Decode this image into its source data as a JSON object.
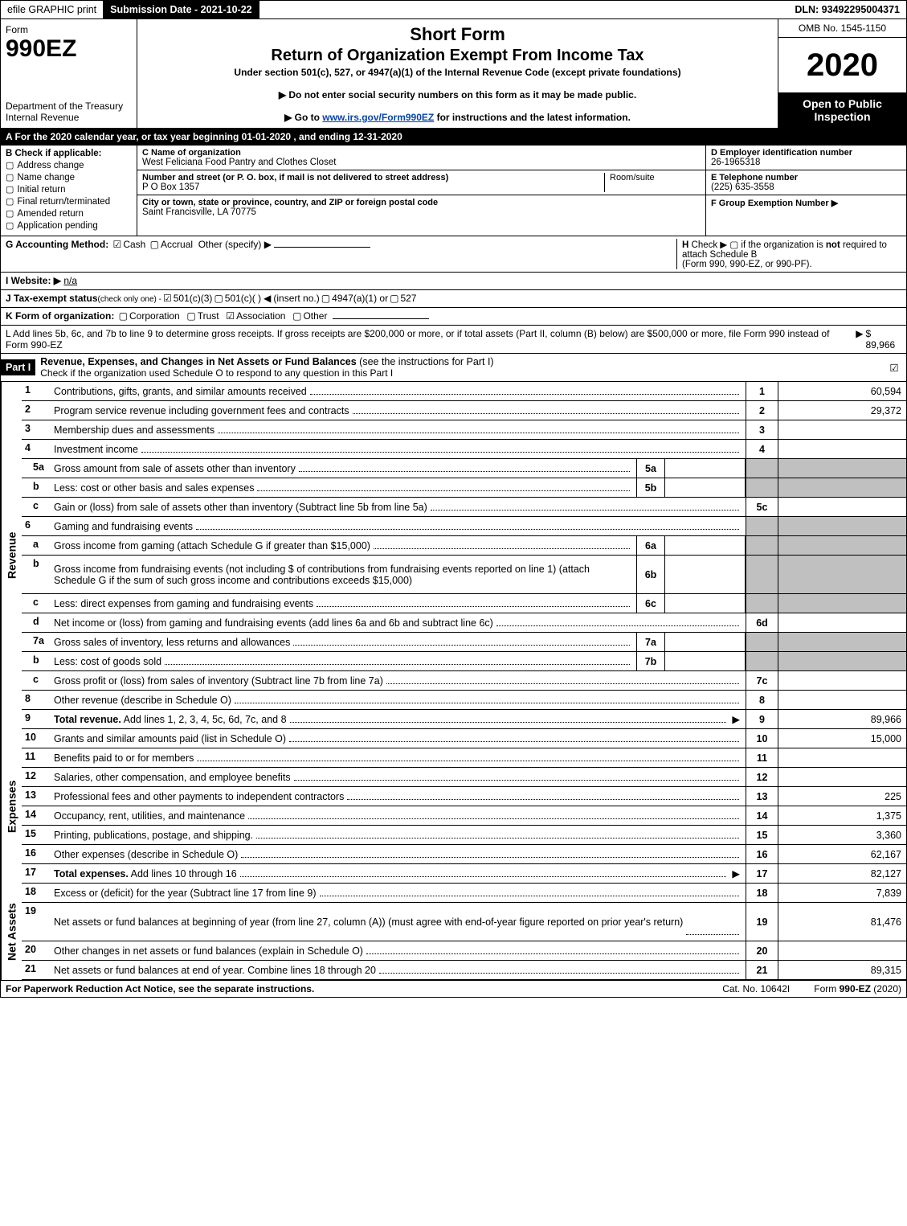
{
  "top_bar": {
    "efile": "efile GRAPHIC print",
    "submission_label": "Submission Date - 2021-10-22",
    "dln": "DLN: 93492295004371"
  },
  "header": {
    "form_word": "Form",
    "form_number": "990EZ",
    "dept1": "Department of the Treasury",
    "dept2": "Internal Revenue",
    "title1": "Short Form",
    "title2": "Return of Organization Exempt From Income Tax",
    "subtitle": "Under section 501(c), 527, or 4947(a)(1) of the Internal Revenue Code (except private foundations)",
    "note1": "▶ Do not enter social security numbers on this form as it may be made public.",
    "note2_pre": "▶ Go to ",
    "note2_link": "www.irs.gov/Form990EZ",
    "note2_post": " for instructions and the latest information.",
    "omb": "OMB No. 1545-1150",
    "year": "2020",
    "inspect": "Open to Public Inspection"
  },
  "row_a": "A For the 2020 calendar year, or tax year beginning 01-01-2020 , and ending 12-31-2020",
  "section_b": {
    "header": "B  Check if applicable:",
    "items": [
      "Address change",
      "Name change",
      "Initial return",
      "Final return/terminated",
      "Amended return",
      "Application pending"
    ]
  },
  "section_c": {
    "name_lbl": "C Name of organization",
    "name_val": "West Feliciana Food Pantry and Clothes Closet",
    "street_lbl": "Number and street (or P. O. box, if mail is not delivered to street address)",
    "street_val": "P O Box 1357",
    "room_lbl": "Room/suite",
    "city_lbl": "City or town, state or province, country, and ZIP or foreign postal code",
    "city_val": "Saint Francisville, LA  70775"
  },
  "section_d": {
    "ein_lbl": "D Employer identification number",
    "ein_val": "26-1965318",
    "phone_lbl": "E Telephone number",
    "phone_val": "(225) 635-3558",
    "group_lbl": "F Group Exemption Number  ▶"
  },
  "line_g": {
    "label": "G Accounting Method:",
    "cash": "Cash",
    "accrual": "Accrual",
    "other": "Other (specify) ▶"
  },
  "line_h": {
    "label": "H",
    "text1": "Check ▶  ▢  if the organization is ",
    "text_not": "not",
    "text2": " required to attach Schedule B",
    "text3": "(Form 990, 990-EZ, or 990-PF)."
  },
  "line_i": {
    "label": "I Website: ▶",
    "val": "n/a"
  },
  "line_j": {
    "pre": "J Tax-exempt status ",
    "small": "(check only one) - ",
    "opt1": "501(c)(3)",
    "opt2": "501(c)(  )",
    "insert": "(insert no.)",
    "opt3": "4947(a)(1) or",
    "opt4": "527"
  },
  "line_k": {
    "pre": "K Form of organization:",
    "opts": [
      "Corporation",
      "Trust",
      "Association",
      "Other"
    ]
  },
  "line_l": {
    "text": "L Add lines 5b, 6c, and 7b to line 9 to determine gross receipts. If gross receipts are $200,000 or more, or if total assets (Part II, column (B) below) are $500,000 or more, file Form 990 instead of Form 990-EZ",
    "amount": "$ 89,966"
  },
  "part1": {
    "label": "Part I",
    "title": "Revenue, Expenses, and Changes in Net Assets or Fund Balances",
    "title_suffix": " (see the instructions for Part I)",
    "check_line": "Check if the organization used Schedule O to respond to any question in this Part I"
  },
  "side_labels": {
    "revenue": "Revenue",
    "expenses": "Expenses",
    "net": "Net Assets"
  },
  "revenue_rows": [
    {
      "n": "1",
      "d": "Contributions, gifts, grants, and similar amounts received",
      "cn": "1",
      "cv": "60,594"
    },
    {
      "n": "2",
      "d": "Program service revenue including government fees and contracts",
      "cn": "2",
      "cv": "29,372"
    },
    {
      "n": "3",
      "d": "Membership dues and assessments",
      "cn": "3",
      "cv": ""
    },
    {
      "n": "4",
      "d": "Investment income",
      "cn": "4",
      "cv": ""
    },
    {
      "n": "5a",
      "sub": true,
      "d": "Gross amount from sale of assets other than inventory",
      "in": "5a",
      "grey": true
    },
    {
      "n": "b",
      "sub": true,
      "d": "Less: cost or other basis and sales expenses",
      "in": "5b",
      "grey": true
    },
    {
      "n": "c",
      "sub": true,
      "d": "Gain or (loss) from sale of assets other than inventory (Subtract line 5b from line 5a)",
      "cn": "5c",
      "cv": ""
    },
    {
      "n": "6",
      "d": "Gaming and fundraising events",
      "grey": true,
      "noColNum": true
    },
    {
      "n": "a",
      "sub": true,
      "d": "Gross income from gaming (attach Schedule G if greater than $15,000)",
      "in": "6a",
      "grey": true
    },
    {
      "n": "b",
      "sub": true,
      "d": "Gross income from fundraising events (not including $                    of contributions from fundraising events reported on line 1) (attach Schedule G if the sum of such gross income and contributions exceeds $15,000)",
      "in": "6b",
      "grey": true,
      "tall": true
    },
    {
      "n": "c",
      "sub": true,
      "d": "Less: direct expenses from gaming and fundraising events",
      "in": "6c",
      "grey": true
    },
    {
      "n": "d",
      "sub": true,
      "d": "Net income or (loss) from gaming and fundraising events (add lines 6a and 6b and subtract line 6c)",
      "cn": "6d",
      "cv": ""
    },
    {
      "n": "7a",
      "sub": true,
      "d": "Gross sales of inventory, less returns and allowances",
      "in": "7a",
      "grey": true
    },
    {
      "n": "b",
      "sub": true,
      "d": "Less: cost of goods sold",
      "in": "7b",
      "grey": true
    },
    {
      "n": "c",
      "sub": true,
      "d": "Gross profit or (loss) from sales of inventory (Subtract line 7b from line 7a)",
      "cn": "7c",
      "cv": ""
    },
    {
      "n": "8",
      "d": "Other revenue (describe in Schedule O)",
      "cn": "8",
      "cv": ""
    },
    {
      "n": "9",
      "d": "Total revenue. Add lines 1, 2, 3, 4, 5c, 6d, 7c, and 8",
      "cn": "9",
      "cv": "89,966",
      "bold": true,
      "arrow": true
    }
  ],
  "expense_rows": [
    {
      "n": "10",
      "d": "Grants and similar amounts paid (list in Schedule O)",
      "cn": "10",
      "cv": "15,000"
    },
    {
      "n": "11",
      "d": "Benefits paid to or for members",
      "cn": "11",
      "cv": ""
    },
    {
      "n": "12",
      "d": "Salaries, other compensation, and employee benefits",
      "cn": "12",
      "cv": ""
    },
    {
      "n": "13",
      "d": "Professional fees and other payments to independent contractors",
      "cn": "13",
      "cv": "225"
    },
    {
      "n": "14",
      "d": "Occupancy, rent, utilities, and maintenance",
      "cn": "14",
      "cv": "1,375"
    },
    {
      "n": "15",
      "d": "Printing, publications, postage, and shipping.",
      "cn": "15",
      "cv": "3,360"
    },
    {
      "n": "16",
      "d": "Other expenses (describe in Schedule O)",
      "cn": "16",
      "cv": "62,167"
    },
    {
      "n": "17",
      "d": "Total expenses. Add lines 10 through 16",
      "cn": "17",
      "cv": "82,127",
      "bold": true,
      "arrow": true
    }
  ],
  "net_rows": [
    {
      "n": "18",
      "d": "Excess or (deficit) for the year (Subtract line 17 from line 9)",
      "cn": "18",
      "cv": "7,839"
    },
    {
      "n": "19",
      "d": "Net assets or fund balances at beginning of year (from line 27, column (A)) (must agree with end-of-year figure reported on prior year's return)",
      "cn": "19",
      "cv": "81,476",
      "tall": true
    },
    {
      "n": "20",
      "d": "Other changes in net assets or fund balances (explain in Schedule O)",
      "cn": "20",
      "cv": ""
    },
    {
      "n": "21",
      "d": "Net assets or fund balances at end of year. Combine lines 18 through 20",
      "cn": "21",
      "cv": "89,315",
      "arrow": false
    }
  ],
  "footer": {
    "left": "For Paperwork Reduction Act Notice, see the separate instructions.",
    "center": "Cat. No. 10642I",
    "right_pre": "Form ",
    "right_form": "990-EZ",
    "right_post": " (2020)"
  }
}
